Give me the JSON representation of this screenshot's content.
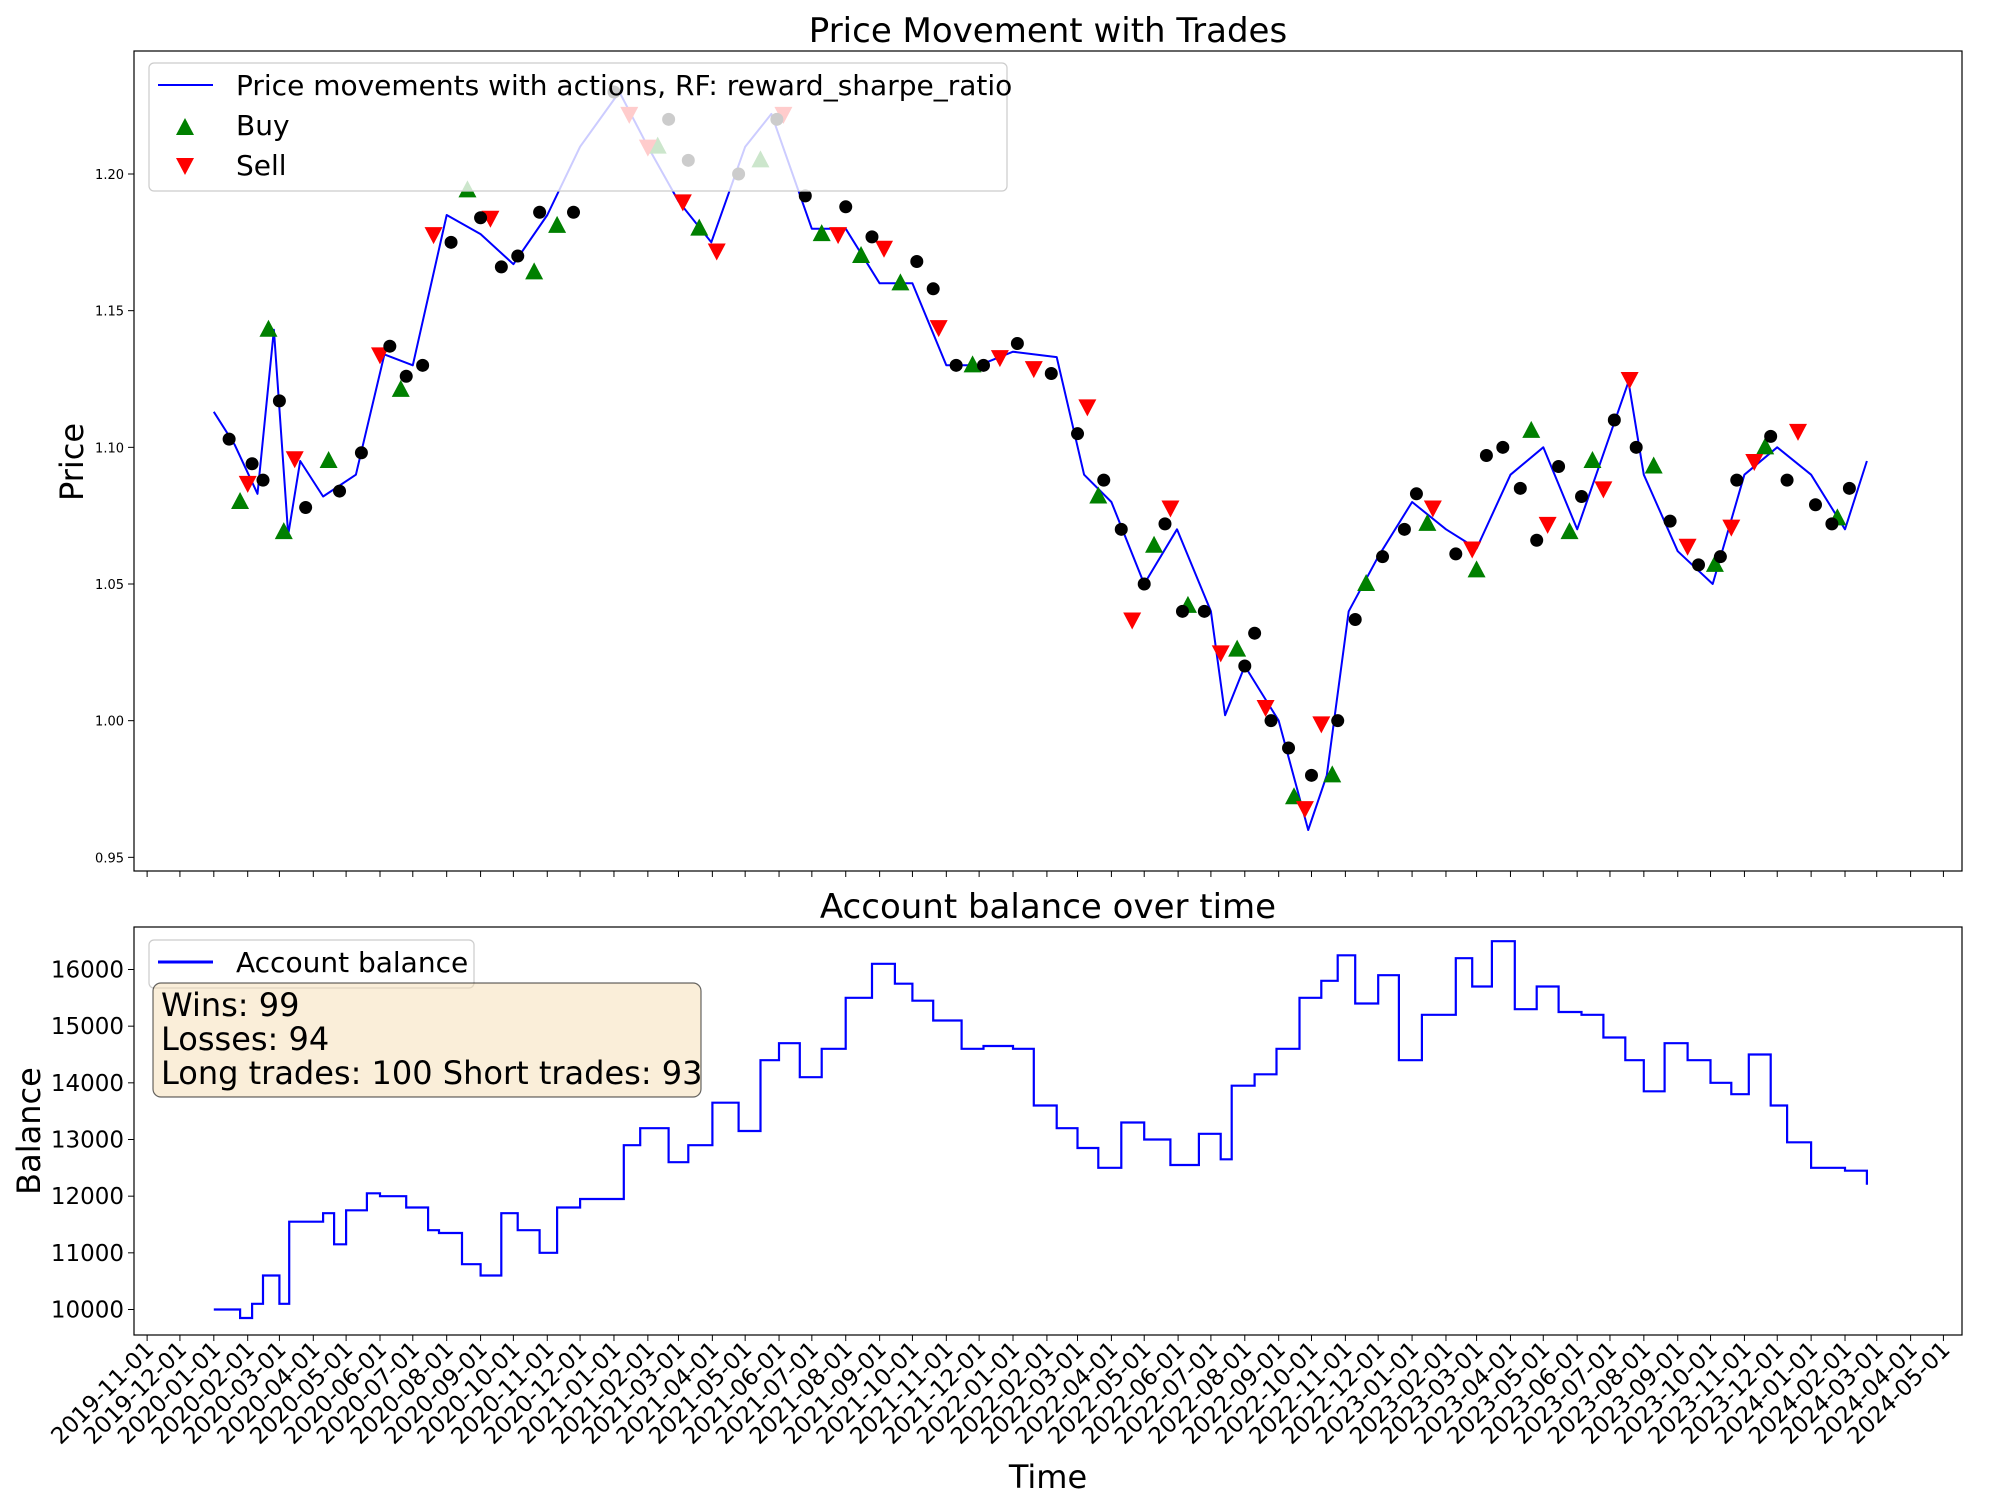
{
  "chart_data": [
    {
      "type": "line",
      "title": "Price Movement with Trades",
      "xlabel": "",
      "ylabel": "Price",
      "ylim": [
        0.945,
        1.245
      ],
      "yticks": [
        "0.95",
        "1.00",
        "1.05",
        "1.10",
        "1.15",
        "1.20"
      ],
      "xlim": [
        "2019-10-20",
        "2024-05-18"
      ],
      "grid": false,
      "legend_position": "top-left",
      "legend": {
        "line": "Price movements with actions, RF: reward_sharpe_ratio",
        "buy": "Buy",
        "sell": "Sell"
      },
      "colors": {
        "price": "#0000ff",
        "long_segment": "#008000",
        "short_segment": "#ff0000",
        "buy": "#008000",
        "sell": "#ff0000",
        "exit": "#000000"
      },
      "series": [
        {
          "key": "price",
          "x": [
            "2020-01-01",
            "2020-01-20",
            "2020-02-10",
            "2020-02-25",
            "2020-03-09",
            "2020-03-20",
            "2020-04-10",
            "2020-05-10",
            "2020-06-05",
            "2020-07-01",
            "2020-08-01",
            "2020-09-01",
            "2020-10-01",
            "2020-11-01",
            "2020-12-01",
            "2021-01-06",
            "2021-02-01",
            "2021-03-01",
            "2021-03-31",
            "2021-05-01",
            "2021-05-25",
            "2021-07-01",
            "2021-08-01",
            "2021-09-01",
            "2021-10-01",
            "2021-11-01",
            "2021-12-01",
            "2022-01-01",
            "2022-02-10",
            "2022-03-07",
            "2022-04-01",
            "2022-05-01",
            "2022-05-31",
            "2022-07-01",
            "2022-07-14",
            "2022-08-01",
            "2022-09-01",
            "2022-09-28",
            "2022-10-15",
            "2022-11-04",
            "2022-12-01",
            "2023-01-01",
            "2023-02-01",
            "2023-03-01",
            "2023-04-01",
            "2023-05-01",
            "2023-06-01",
            "2023-07-18",
            "2023-08-01",
            "2023-09-01",
            "2023-10-03",
            "2023-11-01",
            "2023-12-01",
            "2024-01-01",
            "2024-02-01",
            "2024-02-21"
          ],
          "y": [
            1.113,
            1.101,
            1.083,
            1.143,
            1.068,
            1.095,
            1.082,
            1.09,
            1.134,
            1.13,
            1.185,
            1.178,
            1.167,
            1.185,
            1.21,
            1.23,
            1.21,
            1.19,
            1.175,
            1.21,
            1.222,
            1.18,
            1.18,
            1.16,
            1.16,
            1.13,
            1.13,
            1.135,
            1.133,
            1.09,
            1.08,
            1.05,
            1.07,
            1.04,
            1.002,
            1.02,
            1.0,
            0.96,
            0.98,
            1.04,
            1.06,
            1.08,
            1.07,
            1.063,
            1.09,
            1.1,
            1.07,
            1.124,
            1.09,
            1.062,
            1.05,
            1.09,
            1.1,
            1.09,
            1.07,
            1.095
          ]
        }
      ],
      "trades": {
        "buy": {
          "x": [
            "2020-01-25",
            "2020-02-20",
            "2020-03-05",
            "2020-04-15",
            "2020-06-20",
            "2020-08-20",
            "2020-10-20",
            "2020-11-10",
            "2021-02-10",
            "2021-03-20",
            "2021-05-15",
            "2021-07-10",
            "2021-08-15",
            "2021-09-20",
            "2021-11-25",
            "2022-03-20",
            "2022-05-10",
            "2022-06-10",
            "2022-07-25",
            "2022-09-15",
            "2022-10-20",
            "2022-11-20",
            "2023-01-15",
            "2023-03-01",
            "2023-04-20",
            "2023-05-25",
            "2023-06-15",
            "2023-08-10",
            "2023-10-05",
            "2023-11-20",
            "2024-01-25"
          ],
          "y": [
            1.08,
            1.143,
            1.069,
            1.095,
            1.121,
            1.194,
            1.164,
            1.181,
            1.21,
            1.18,
            1.205,
            1.178,
            1.17,
            1.16,
            1.13,
            1.082,
            1.064,
            1.042,
            1.026,
            0.972,
            0.98,
            1.05,
            1.072,
            1.055,
            1.106,
            1.069,
            1.095,
            1.093,
            1.057,
            1.1,
            1.074
          ]
        },
        "sell": {
          "x": [
            "2020-02-01",
            "2020-03-15",
            "2020-06-01",
            "2020-07-20",
            "2020-09-10",
            "2021-01-15",
            "2021-02-01",
            "2021-03-05",
            "2021-04-05",
            "2021-06-05",
            "2021-07-25",
            "2021-09-05",
            "2021-10-25",
            "2021-12-20",
            "2022-01-20",
            "2022-03-10",
            "2022-04-20",
            "2022-05-25",
            "2022-07-10",
            "2022-08-20",
            "2022-09-25",
            "2022-10-10",
            "2023-01-20",
            "2023-02-25",
            "2023-05-05",
            "2023-06-25",
            "2023-07-19",
            "2023-09-10",
            "2023-10-20",
            "2023-11-10",
            "2023-12-20"
          ],
          "y": [
            1.087,
            1.096,
            1.134,
            1.178,
            1.184,
            1.222,
            1.21,
            1.19,
            1.172,
            1.222,
            1.178,
            1.173,
            1.144,
            1.133,
            1.129,
            1.115,
            1.037,
            1.078,
            1.025,
            1.005,
            0.968,
            0.999,
            1.078,
            1.063,
            1.072,
            1.085,
            1.125,
            1.064,
            1.071,
            1.095,
            1.106
          ]
        },
        "exit": {
          "x": [
            "2020-01-15",
            "2020-02-05",
            "2020-02-15",
            "2020-03-01",
            "2020-03-25",
            "2020-04-25",
            "2020-05-15",
            "2020-06-10",
            "2020-06-25",
            "2020-07-10",
            "2020-08-05",
            "2020-09-01",
            "2020-09-20",
            "2020-10-05",
            "2020-10-25",
            "2020-11-25",
            "2021-01-01",
            "2021-02-20",
            "2021-03-10",
            "2021-04-25",
            "2021-05-30",
            "2021-06-25",
            "2021-08-01",
            "2021-08-25",
            "2021-10-05",
            "2021-10-20",
            "2021-11-10",
            "2021-12-05",
            "2022-01-05",
            "2022-02-05",
            "2022-03-01",
            "2022-03-25",
            "2022-04-10",
            "2022-05-01",
            "2022-05-20",
            "2022-06-05",
            "2022-06-25",
            "2022-08-01",
            "2022-08-10",
            "2022-08-25",
            "2022-09-10",
            "2022-10-01",
            "2022-10-25",
            "2022-11-10",
            "2022-12-05",
            "2022-12-25",
            "2023-01-05",
            "2023-02-10",
            "2023-03-10",
            "2023-03-25",
            "2023-04-10",
            "2023-04-25",
            "2023-05-15",
            "2023-06-05",
            "2023-07-05",
            "2023-07-25",
            "2023-08-25",
            "2023-09-20",
            "2023-10-10",
            "2023-10-25",
            "2023-11-25",
            "2023-12-10",
            "2024-01-05",
            "2024-01-20",
            "2024-02-05"
          ],
          "y": [
            1.103,
            1.094,
            1.088,
            1.117,
            1.078,
            1.084,
            1.098,
            1.137,
            1.126,
            1.13,
            1.175,
            1.184,
            1.166,
            1.17,
            1.186,
            1.186,
            1.23,
            1.22,
            1.205,
            1.2,
            1.22,
            1.192,
            1.188,
            1.177,
            1.168,
            1.158,
            1.13,
            1.13,
            1.138,
            1.127,
            1.105,
            1.088,
            1.07,
            1.05,
            1.072,
            1.04,
            1.04,
            1.02,
            1.032,
            1.0,
            0.99,
            0.98,
            1.0,
            1.037,
            1.06,
            1.07,
            1.083,
            1.061,
            1.097,
            1.1,
            1.085,
            1.066,
            1.093,
            1.082,
            1.11,
            1.1,
            1.073,
            1.057,
            1.06,
            1.088,
            1.104,
            1.088,
            1.079,
            1.072,
            1.085
          ]
        }
      }
    },
    {
      "type": "line",
      "title": "Account balance over time",
      "xlabel": "Time",
      "ylabel": "Balance",
      "ylim": [
        9550,
        16750
      ],
      "yticks": [
        "10000",
        "11000",
        "12000",
        "13000",
        "14000",
        "15000",
        "16000"
      ],
      "xlim": [
        "2019-10-20",
        "2024-05-18"
      ],
      "xticks": [
        "2019-11-01",
        "2019-12-01",
        "2020-01-01",
        "2020-02-01",
        "2020-03-01",
        "2020-04-01",
        "2020-05-01",
        "2020-06-01",
        "2020-07-01",
        "2020-08-01",
        "2020-09-01",
        "2020-10-01",
        "2020-11-01",
        "2020-12-01",
        "2021-01-01",
        "2021-02-01",
        "2021-03-01",
        "2021-04-01",
        "2021-05-01",
        "2021-06-01",
        "2021-07-01",
        "2021-08-01",
        "2021-09-01",
        "2021-10-01",
        "2021-11-01",
        "2021-12-01",
        "2022-01-01",
        "2022-02-01",
        "2022-03-01",
        "2022-04-01",
        "2022-05-01",
        "2022-06-01",
        "2022-07-01",
        "2022-08-01",
        "2022-09-01",
        "2022-10-01",
        "2022-11-01",
        "2022-12-01",
        "2023-01-01",
        "2023-02-01",
        "2023-03-01",
        "2023-04-01",
        "2023-05-01",
        "2023-06-01",
        "2023-07-01",
        "2023-08-01",
        "2023-09-01",
        "2023-10-01",
        "2023-11-01",
        "2023-12-01",
        "2024-01-01",
        "2024-02-01",
        "2024-03-01",
        "2024-04-01",
        "2024-05-01"
      ],
      "grid": false,
      "legend_position": "top-left",
      "colors": {
        "balance": "#0000ff"
      },
      "series": [
        {
          "name": "Account balance",
          "x": [
            "2020-01-01",
            "2020-01-25",
            "2020-02-05",
            "2020-02-15",
            "2020-03-01",
            "2020-03-10",
            "2020-03-25",
            "2020-04-10",
            "2020-04-20",
            "2020-05-01",
            "2020-05-20",
            "2020-06-01",
            "2020-06-25",
            "2020-07-15",
            "2020-07-25",
            "2020-08-15",
            "2020-09-01",
            "2020-09-20",
            "2020-10-05",
            "2020-10-25",
            "2020-11-10",
            "2020-12-01",
            "2020-12-15",
            "2021-01-10",
            "2021-01-25",
            "2021-02-20",
            "2021-03-10",
            "2021-04-01",
            "2021-04-25",
            "2021-05-15",
            "2021-06-01",
            "2021-06-20",
            "2021-07-10",
            "2021-08-01",
            "2021-08-25",
            "2021-09-15",
            "2021-10-01",
            "2021-10-20",
            "2021-11-15",
            "2021-12-05",
            "2022-01-01",
            "2022-01-20",
            "2022-02-10",
            "2022-03-01",
            "2022-03-20",
            "2022-04-10",
            "2022-05-01",
            "2022-05-25",
            "2022-06-20",
            "2022-07-10",
            "2022-07-20",
            "2022-08-10",
            "2022-08-30",
            "2022-09-20",
            "2022-10-10",
            "2022-10-25",
            "2022-11-10",
            "2022-12-01",
            "2022-12-20",
            "2023-01-10",
            "2023-01-25",
            "2023-02-10",
            "2023-02-25",
            "2023-03-15",
            "2023-04-05",
            "2023-04-25",
            "2023-05-15",
            "2023-06-05",
            "2023-06-25",
            "2023-07-15",
            "2023-08-01",
            "2023-08-20",
            "2023-09-10",
            "2023-10-01",
            "2023-10-20",
            "2023-11-05",
            "2023-11-25",
            "2023-12-10",
            "2024-01-01",
            "2024-01-20",
            "2024-02-01",
            "2024-02-21"
          ],
          "y": [
            10000,
            9850,
            10100,
            10600,
            10100,
            11550,
            11550,
            11700,
            11150,
            11750,
            12050,
            12000,
            11800,
            11400,
            11350,
            10800,
            10600,
            11700,
            11400,
            11000,
            11800,
            11950,
            11950,
            12900,
            13200,
            12600,
            12900,
            13650,
            13150,
            14400,
            14700,
            14100,
            14600,
            15500,
            16100,
            15750,
            15450,
            15100,
            14600,
            14650,
            14600,
            13600,
            13200,
            12850,
            12500,
            13300,
            13000,
            12550,
            13100,
            12650,
            13950,
            14150,
            14600,
            15500,
            15800,
            16250,
            15400,
            15900,
            14400,
            15200,
            15200,
            16200,
            15700,
            16500,
            15300,
            15700,
            15250,
            15200,
            14800,
            14400,
            13850,
            14700,
            14400,
            14000,
            13800,
            14500,
            13600,
            12950,
            12500,
            12500,
            12450,
            12200
          ]
        }
      ],
      "stats": {
        "wins": "Wins: 99",
        "losses": "Losses: 94",
        "trades": "Long trades: 100 Short trades: 93"
      }
    }
  ]
}
